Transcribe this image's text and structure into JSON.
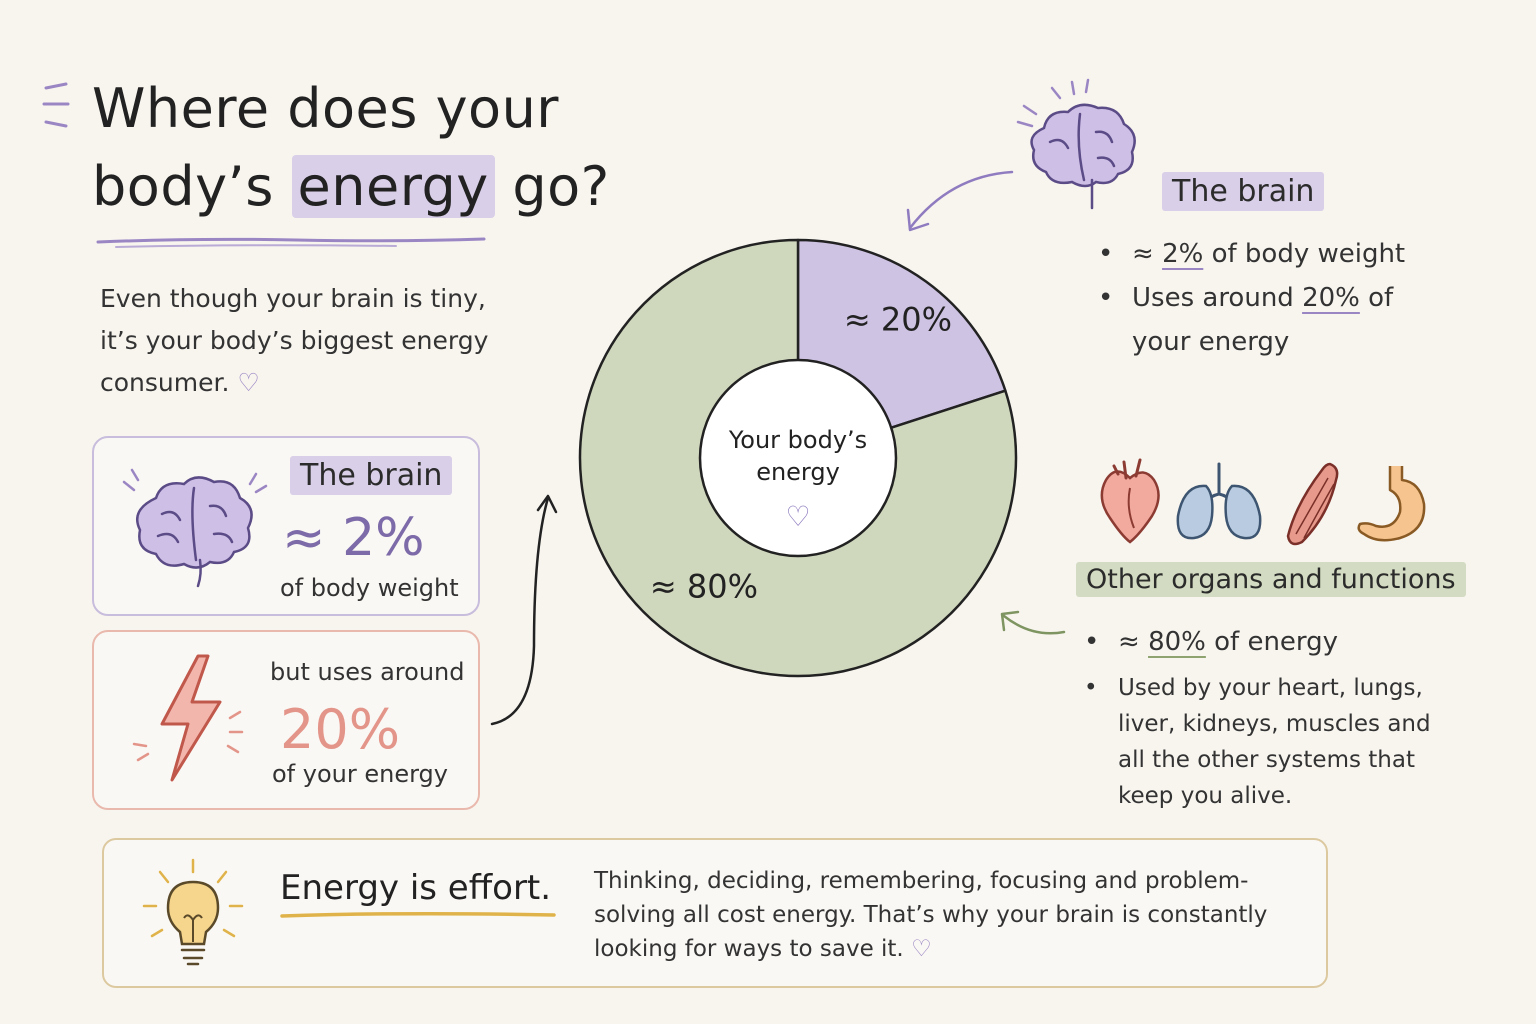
{
  "title": {
    "line1": "Where does your",
    "line2_pre": "body’s",
    "line2_highlight": "energy",
    "line2_post": "go?"
  },
  "intro": {
    "text": "Even though your brain is tiny, it’s your body’s biggest energy consumer.",
    "heart": "♡"
  },
  "brain_card": {
    "title": "The brain",
    "value": "≈ 2%",
    "sub": "of body weight",
    "icon": "brain-icon"
  },
  "energy_card": {
    "pre": "but uses around",
    "value": "20%",
    "sub": "of your energy",
    "icon": "lightning-icon"
  },
  "chart_data": {
    "type": "pie",
    "title": "",
    "center_label_line1": "Your body’s",
    "center_label_line2": "energy",
    "center_heart": "♡",
    "slices": [
      {
        "label": "≈ 20%",
        "value": 20,
        "color": "#cfc3e3"
      },
      {
        "label": "≈ 80%",
        "value": 80,
        "color": "#cfd7bd"
      }
    ]
  },
  "right_brain": {
    "title": "The brain",
    "bullet1_pre": "≈",
    "bullet1_value": "2%",
    "bullet1_post": "of body weight",
    "bullet2_pre": "Uses around",
    "bullet2_value": "20%",
    "bullet2_post": "of your energy"
  },
  "organs": {
    "title": "Other organs and functions",
    "icons": [
      "heart-icon",
      "lungs-icon",
      "muscle-icon",
      "stomach-icon"
    ],
    "bullet1_pre": "≈",
    "bullet1_value": "80%",
    "bullet1_post": "of energy",
    "bullet2": "Used by your heart, lungs, liver, kidneys, muscles and all the other systems that keep you alive."
  },
  "footer": {
    "heading": "Energy is effort.",
    "text": "Thinking, deciding, remembering, focusing and problem-solving all cost energy. That’s why your brain is constantly looking for ways to save it.",
    "heart": "♡",
    "icon": "lightbulb-icon"
  },
  "colors": {
    "brain_purple": "#cfc3e3",
    "body_green": "#cfd7bd",
    "accent_salmon": "#e3958a",
    "footer_border": "#dcc9a0"
  }
}
